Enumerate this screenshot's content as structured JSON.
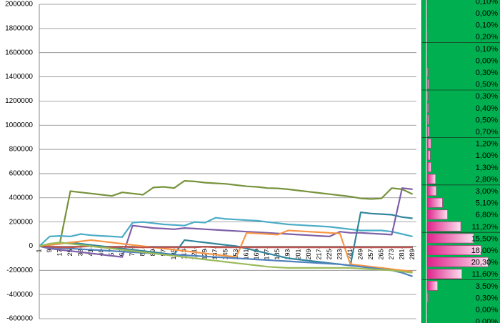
{
  "chart_data": [
    {
      "type": "line",
      "x": [
        1,
        9,
        17,
        25,
        33,
        41,
        49,
        57,
        65,
        73,
        81,
        89,
        97,
        105,
        113,
        121,
        129,
        137,
        145,
        153,
        161,
        169,
        177,
        185,
        193,
        201,
        209,
        217,
        225,
        233,
        241,
        249,
        257,
        265,
        273,
        281,
        289
      ],
      "xlim": [
        1,
        292
      ],
      "ylim": [
        -600000,
        2000000
      ],
      "yticks": [
        -600000,
        -400000,
        -200000,
        0,
        200000,
        400000,
        600000,
        800000,
        1000000,
        1200000,
        1400000,
        1600000,
        1800000,
        2000000
      ],
      "grid": true,
      "series": [
        {
          "color": "#77933c",
          "values": [
            0,
            20000,
            30000,
            455000,
            445000,
            435000,
            425000,
            415000,
            445000,
            435000,
            425000,
            485000,
            490000,
            480000,
            540000,
            535000,
            525000,
            520000,
            515000,
            505000,
            495000,
            490000,
            480000,
            478000,
            470000,
            460000,
            450000,
            440000,
            430000,
            420000,
            410000,
            395000,
            390000,
            395000,
            480000,
            470000,
            430000
          ]
        },
        {
          "color": "#4bacc6",
          "values": [
            0,
            80000,
            85000,
            80000,
            100000,
            90000,
            85000,
            80000,
            75000,
            195000,
            200000,
            190000,
            180000,
            175000,
            170000,
            200000,
            195000,
            235000,
            225000,
            220000,
            215000,
            210000,
            200000,
            190000,
            180000,
            175000,
            170000,
            165000,
            160000,
            150000,
            140000,
            130000,
            130000,
            130000,
            120000,
            100000,
            80000
          ]
        },
        {
          "color": "#31859c",
          "values": [
            0,
            10000,
            20000,
            30000,
            20000,
            10000,
            0,
            -10000,
            -20000,
            -30000,
            -40000,
            -50000,
            -60000,
            -70000,
            50000,
            40000,
            30000,
            20000,
            10000,
            0,
            -20000,
            -40000,
            -60000,
            -80000,
            -100000,
            -110000,
            -120000,
            -130000,
            -140000,
            -150000,
            -160000,
            280000,
            270000,
            265000,
            260000,
            240000,
            230000
          ]
        },
        {
          "color": "#7f5fa8",
          "values": [
            0,
            -20000,
            -30000,
            -40000,
            -50000,
            -60000,
            -70000,
            -80000,
            -90000,
            170000,
            160000,
            150000,
            145000,
            140000,
            150000,
            145000,
            140000,
            135000,
            130000,
            125000,
            120000,
            115000,
            110000,
            105000,
            100000,
            95000,
            90000,
            85000,
            80000,
            120000,
            110000,
            110000,
            105000,
            100000,
            95000,
            480000,
            470000
          ]
        },
        {
          "color": "#f79646",
          "values": [
            0,
            10000,
            20000,
            30000,
            40000,
            50000,
            40000,
            30000,
            20000,
            10000,
            0,
            -10000,
            -20000,
            -30000,
            -40000,
            -50000,
            -60000,
            -70000,
            -80000,
            -90000,
            110000,
            105000,
            100000,
            95000,
            130000,
            125000,
            120000,
            115000,
            110000,
            105000,
            -150000,
            -160000,
            -170000,
            -180000,
            -190000,
            -200000,
            -210000
          ]
        },
        {
          "color": "#4f81bd",
          "values": [
            0,
            -10000,
            -15000,
            -20000,
            -25000,
            -30000,
            -35000,
            -40000,
            -45000,
            -50000,
            -55000,
            -60000,
            -65000,
            -70000,
            -75000,
            -80000,
            -85000,
            -90000,
            -95000,
            -100000,
            -105000,
            -110000,
            -115000,
            -120000,
            -125000,
            -130000,
            -135000,
            -140000,
            -145000,
            -150000,
            -160000,
            -170000,
            -180000,
            -190000,
            -200000,
            -220000,
            -250000
          ]
        },
        {
          "color": "#c0504d",
          "values": [
            0,
            -5000,
            -10000,
            -10000,
            -5000,
            0,
            -10000,
            -10000,
            -5000,
            -10000,
            -10000,
            -10000,
            -10000,
            -10000,
            -10000,
            -10000,
            -5000,
            -10000,
            -10000,
            -10000,
            -10000,
            -10000,
            -10000,
            -10000,
            -10000,
            -10000,
            -10000,
            -10000,
            -10000,
            -10000,
            -10000,
            -10000,
            -10000,
            -10000,
            -10000,
            -10000,
            -10000
          ]
        },
        {
          "color": "#9bbb59",
          "values": [
            0,
            20000,
            30000,
            20000,
            10000,
            0,
            -10000,
            -20000,
            -30000,
            -40000,
            -50000,
            -60000,
            -70000,
            -80000,
            -90000,
            -100000,
            -110000,
            -120000,
            -130000,
            -140000,
            -150000,
            -160000,
            -170000,
            -175000,
            -180000,
            -180000,
            -180000,
            -180000,
            -180000,
            -180000,
            -180000,
            -185000,
            -190000,
            -195000,
            -200000,
            -210000,
            -220000
          ]
        }
      ]
    },
    {
      "type": "databar",
      "color": "#e0218a",
      "values": [
        0.1,
        0,
        0.1,
        0.2,
        0.1,
        0,
        0.3,
        0.5,
        0.3,
        0.4,
        0.5,
        0.7,
        1.2,
        1,
        1.3,
        2.8,
        3,
        5.1,
        6.8,
        11.2,
        15.5,
        18,
        20.3,
        11.6,
        3.5,
        0.3,
        0,
        0
      ],
      "value_labels": [
        "0,10%",
        "0,00%",
        "0,10%",
        "0,20%",
        "0,10%",
        "0,00%",
        "0,30%",
        "0,50%",
        "0,30%",
        "0,40%",
        "0,50%",
        "0,70%",
        "1,20%",
        "1,00%",
        "1,30%",
        "2,80%",
        "3,00%",
        "5,10%",
        "6,80%",
        "11,20%",
        "15,50%",
        "18,00%",
        "20,30%",
        "11,60%",
        "3,50%",
        "0,30%",
        "0,00%",
        "0,00%"
      ]
    }
  ]
}
